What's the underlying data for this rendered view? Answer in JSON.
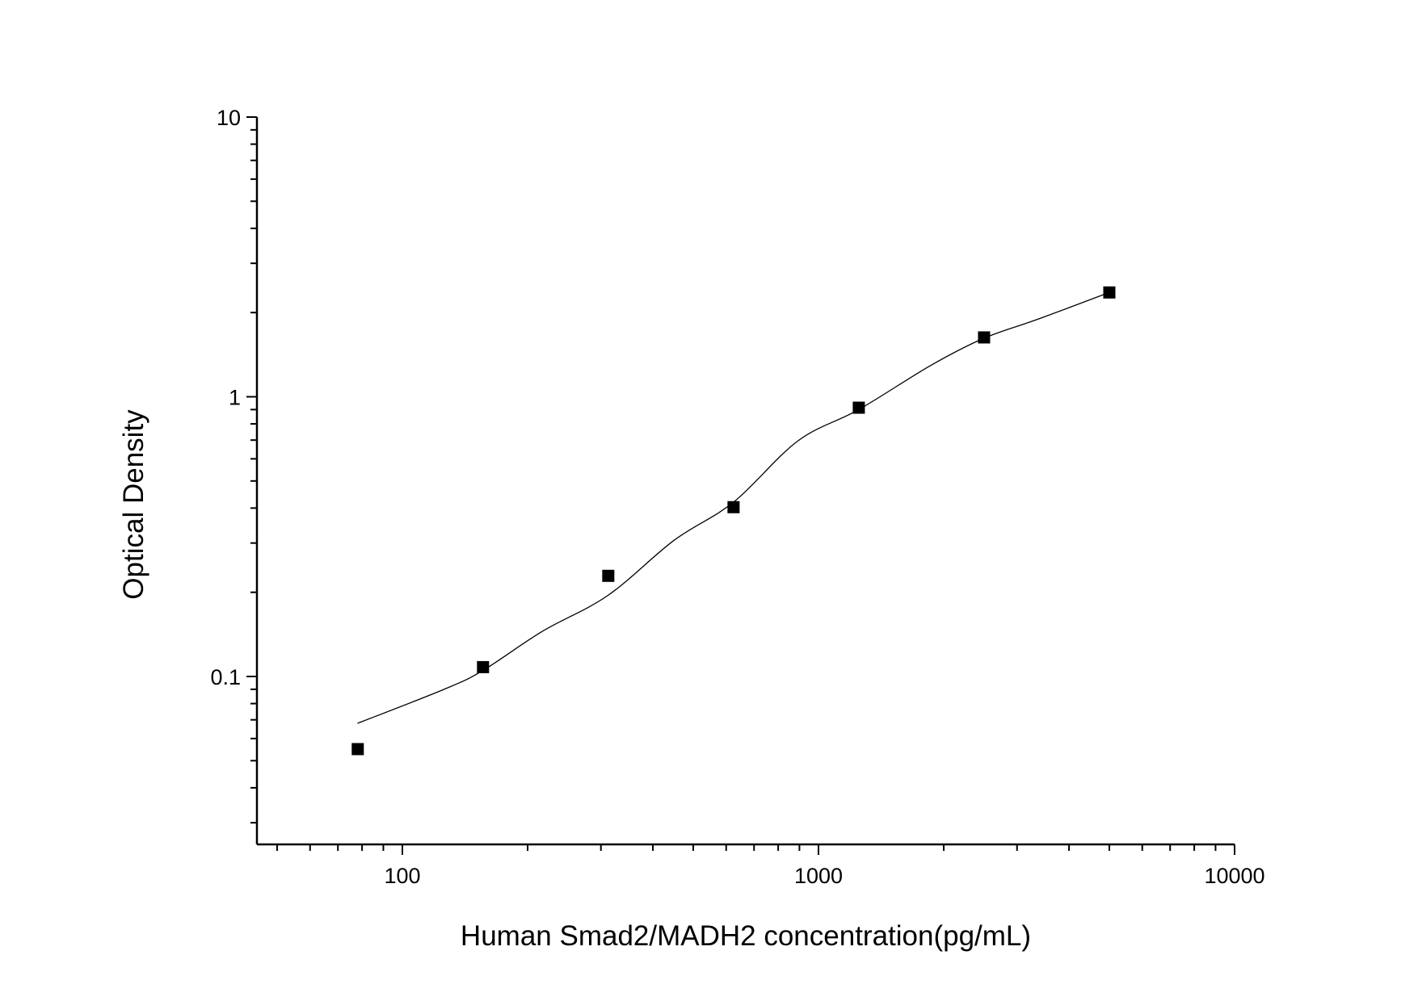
{
  "chart_data": {
    "type": "scatter",
    "title": "",
    "xlabel": "Human Smad2/MADH2 concentration(pg/mL)",
    "ylabel": "Optical Density",
    "xscale": "log",
    "yscale": "log",
    "xlim": [
      45,
      10000
    ],
    "ylim": [
      0.025,
      10
    ],
    "x_ticks": [
      {
        "value": 100,
        "label": "100"
      },
      {
        "value": 1000,
        "label": "1000"
      },
      {
        "value": 10000,
        "label": "10000"
      }
    ],
    "y_ticks": [
      {
        "value": 0.1,
        "label": "0.1"
      },
      {
        "value": 1,
        "label": "1"
      },
      {
        "value": 10,
        "label": "10"
      }
    ],
    "grid": false,
    "marker": "square",
    "marker_color": "#000000",
    "series": [
      {
        "x": [
          78.125,
          156.25,
          312.5,
          625,
          1250,
          2500,
          5000
        ],
        "y": [
          0.055,
          0.108,
          0.229,
          0.403,
          0.914,
          1.63,
          2.36
        ]
      }
    ],
    "fit_curve": {
      "color": "#000000",
      "x": [
        78,
        126,
        156,
        217,
        312,
        450,
        625,
        892,
        1250,
        1854,
        2500,
        3390,
        5000
      ],
      "y": [
        0.068,
        0.09,
        0.105,
        0.145,
        0.195,
        0.307,
        0.42,
        0.695,
        0.9,
        1.29,
        1.62,
        1.9,
        2.36
      ]
    }
  }
}
